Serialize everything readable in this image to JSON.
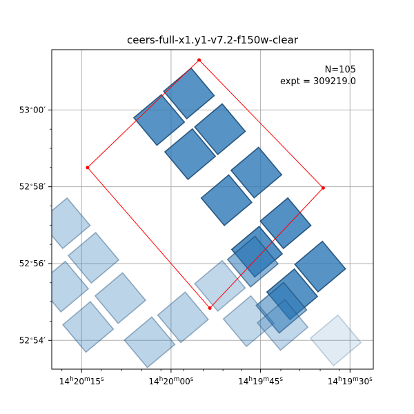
{
  "chart_data": {
    "type": "scatter",
    "title": "ceers-full-x1.y1-v7.2-f150w-clear",
    "annotations": [
      "N=105",
      "expt = 309219.0"
    ],
    "grid": true,
    "x_ticks": [
      {
        "ra_sec": 315,
        "h": "14",
        "m": "20",
        "s": "15"
      },
      {
        "ra_sec": 300,
        "h": "14",
        "m": "20",
        "s": "00"
      },
      {
        "ra_sec": 285,
        "h": "14",
        "m": "19",
        "s": "45"
      },
      {
        "ra_sec": 270,
        "h": "14",
        "m": "19",
        "s": "30"
      }
    ],
    "y_ticks": [
      {
        "dec_min": 54,
        "deg": "53",
        "min": "00′"
      },
      {
        "dec_min": 52,
        "deg": "52",
        "min": "58′"
      },
      {
        "dec_min": 50,
        "deg": "52",
        "min": "56′"
      },
      {
        "dec_min": 48,
        "deg": "52",
        "min": "54′"
      }
    ],
    "x_minor_ticks": [
      318.3,
      311.7,
      308.3,
      304.9,
      301.7,
      297.9,
      294.6,
      291.3,
      288.2,
      281.6,
      278.4,
      275.0,
      271.8
    ],
    "y_minor_ticks": [
      53.5,
      53.0,
      52.5,
      51.5,
      51.0,
      50.5,
      49.5,
      49.0,
      48.5
    ],
    "xlim": [
      320.0,
      266.1
    ],
    "ylim": [
      47.25,
      55.57
    ],
    "outline_polygon": [
      {
        "ra_sec": 295.3,
        "dec_min": 55.3
      },
      {
        "ra_sec": 274.5,
        "dec_min": 51.97
      },
      {
        "ra_sec": 293.5,
        "dec_min": 48.84
      },
      {
        "ra_sec": 314.0,
        "dec_min": 52.5
      }
    ],
    "exposure_tiles": [
      {
        "ra_sec": 297.0,
        "dec_min": 54.43,
        "angle": 50,
        "opacity": 0.8,
        "group": "dark"
      },
      {
        "ra_sec": 302.0,
        "dec_min": 53.74,
        "angle": 50,
        "opacity": 0.8,
        "group": "dark"
      },
      {
        "ra_sec": 291.8,
        "dec_min": 53.5,
        "angle": 50,
        "opacity": 0.8,
        "group": "dark"
      },
      {
        "ra_sec": 296.8,
        "dec_min": 52.85,
        "angle": 50,
        "opacity": 0.8,
        "group": "dark"
      },
      {
        "ra_sec": 285.7,
        "dec_min": 52.37,
        "angle": 50,
        "opacity": 0.8,
        "group": "dark"
      },
      {
        "ra_sec": 290.7,
        "dec_min": 51.65,
        "angle": 50,
        "opacity": 0.8,
        "group": "dark"
      },
      {
        "ra_sec": 280.8,
        "dec_min": 51.05,
        "angle": 50,
        "opacity": 0.82,
        "group": "dark"
      },
      {
        "ra_sec": 285.6,
        "dec_min": 50.31,
        "angle": 50,
        "opacity": 0.82,
        "group": "dark"
      },
      {
        "ra_sec": 275.0,
        "dec_min": 49.92,
        "angle": 50,
        "opacity": 0.8,
        "group": "dark"
      },
      {
        "ra_sec": 279.7,
        "dec_min": 49.2,
        "angle": 50,
        "opacity": 0.8,
        "group": "dark"
      },
      {
        "ra_sec": 286.3,
        "dec_min": 50.05,
        "angle": 50,
        "opacity": 0.55,
        "group": "mid"
      },
      {
        "ra_sec": 281.5,
        "dec_min": 48.85,
        "angle": 50,
        "opacity": 0.55,
        "group": "mid"
      },
      {
        "ra_sec": 317.8,
        "dec_min": 51.05,
        "angle": 50,
        "opacity": 0.32,
        "group": "light"
      },
      {
        "ra_sec": 313.0,
        "dec_min": 50.15,
        "angle": 50,
        "opacity": 0.32,
        "group": "light"
      },
      {
        "ra_sec": 318.1,
        "dec_min": 49.4,
        "angle": 50,
        "opacity": 0.32,
        "group": "light"
      },
      {
        "ra_sec": 308.5,
        "dec_min": 49.1,
        "angle": 50,
        "opacity": 0.32,
        "group": "light"
      },
      {
        "ra_sec": 313.9,
        "dec_min": 48.35,
        "angle": 50,
        "opacity": 0.32,
        "group": "light"
      },
      {
        "ra_sec": 303.6,
        "dec_min": 47.95,
        "angle": 50,
        "opacity": 0.32,
        "group": "light"
      },
      {
        "ra_sec": 298.0,
        "dec_min": 48.6,
        "angle": 50,
        "opacity": 0.32,
        "group": "light"
      },
      {
        "ra_sec": 291.8,
        "dec_min": 49.42,
        "angle": 50,
        "opacity": 0.3,
        "group": "light"
      },
      {
        "ra_sec": 287.0,
        "dec_min": 48.5,
        "angle": 50,
        "opacity": 0.3,
        "group": "light"
      },
      {
        "ra_sec": 281.3,
        "dec_min": 48.4,
        "angle": 50,
        "opacity": 0.3,
        "group": "light"
      },
      {
        "ra_sec": 272.4,
        "dec_min": 48.0,
        "angle": 50,
        "opacity": 0.15,
        "group": "faint"
      }
    ],
    "colors": {
      "tile": "#2d78b7",
      "tile_edge": "#1b4b75",
      "outline": "#ff0000",
      "grid": "#b0b0b0",
      "axes": "#000000"
    }
  }
}
